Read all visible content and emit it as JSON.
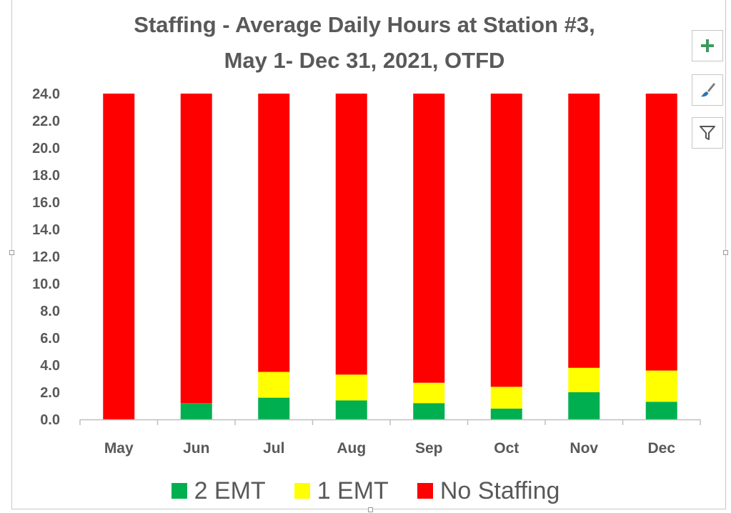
{
  "chart_data": {
    "type": "bar",
    "stacked": true,
    "title_lines": [
      "Staffing - Average Daily Hours at Station #3,",
      "May 1- Dec 31, 2021, OTFD"
    ],
    "categories": [
      "May",
      "Jun",
      "Jul",
      "Aug",
      "Sep",
      "Oct",
      "Nov",
      "Dec"
    ],
    "series": [
      {
        "name": "2 EMT",
        "color": "#00b050",
        "values": [
          0.0,
          1.2,
          1.6,
          1.4,
          1.2,
          0.8,
          2.0,
          1.3
        ]
      },
      {
        "name": "1 EMT",
        "color": "#ffff00",
        "values": [
          0.0,
          0.0,
          1.9,
          1.9,
          1.5,
          1.6,
          1.8,
          2.3
        ]
      },
      {
        "name": "No Staffing",
        "color": "#ff0000",
        "values": [
          24.0,
          22.8,
          20.5,
          20.7,
          21.3,
          21.6,
          20.2,
          20.4
        ]
      }
    ],
    "ylim": [
      0,
      24
    ],
    "yticks": [
      "0.0",
      "2.0",
      "4.0",
      "6.0",
      "8.0",
      "10.0",
      "12.0",
      "14.0",
      "16.0",
      "18.0",
      "20.0",
      "22.0",
      "24.0"
    ],
    "grid": false,
    "legend_position": "bottom"
  },
  "toolbar": {
    "buttons": [
      {
        "icon": "plus-icon"
      },
      {
        "icon": "paintbrush-icon"
      },
      {
        "icon": "filter-icon"
      }
    ]
  }
}
